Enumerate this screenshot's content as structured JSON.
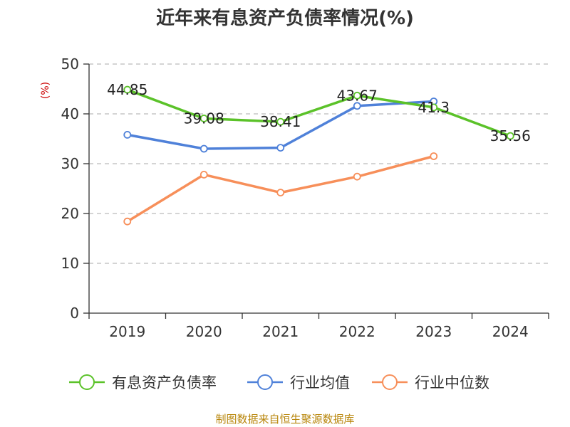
{
  "chart_data": {
    "type": "line",
    "title": "近年来有息资产负债率情况(%)",
    "ylabel": "(%)",
    "xlabel": "",
    "categories": [
      "2019",
      "2020",
      "2021",
      "2022",
      "2023",
      "2024"
    ],
    "ylim": [
      0,
      50
    ],
    "yticks": [
      0,
      10,
      20,
      30,
      40,
      50
    ],
    "grid": "horizontal-dashed",
    "legend_position": "bottom",
    "series": [
      {
        "name": "有息资产负债率",
        "color": "#5bc229",
        "values": [
          44.85,
          39.08,
          38.41,
          43.67,
          41.3,
          35.56
        ],
        "labels": [
          "44.85",
          "39.08",
          "38.41",
          "43.67",
          "41.3",
          "35.56"
        ]
      },
      {
        "name": "行业均值",
        "color": "#4f81d9",
        "values": [
          35.8,
          33.0,
          33.2,
          41.6,
          42.5,
          null
        ]
      },
      {
        "name": "行业中位数",
        "color": "#f78f5a",
        "values": [
          18.4,
          27.8,
          24.2,
          27.4,
          31.5,
          null
        ]
      }
    ]
  },
  "footer": {
    "source": "制图数据来自恒生聚源数据库"
  }
}
